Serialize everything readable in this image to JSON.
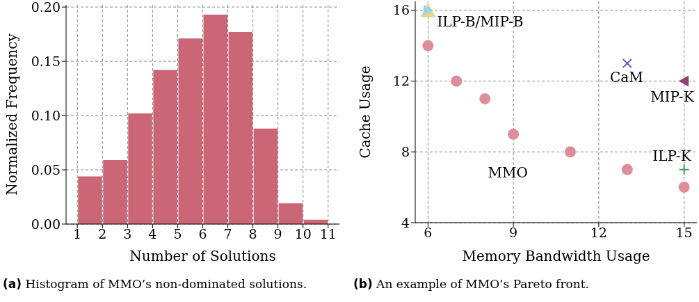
{
  "chart_data": [
    {
      "type": "histogram",
      "xlabel": "Number of Solutions",
      "ylabel": "Normalized Frequency",
      "bins": [
        1,
        2,
        3,
        4,
        5,
        6,
        7,
        8,
        9,
        10,
        11
      ],
      "values": [
        0.044,
        0.059,
        0.102,
        0.142,
        0.171,
        0.193,
        0.177,
        0.088,
        0.019,
        0.004
      ],
      "color": "#cb6677",
      "xlim": [
        0.55,
        11.45
      ],
      "ylim": [
        0,
        0.202
      ],
      "xticks": [
        1,
        2,
        3,
        4,
        5,
        6,
        7,
        8,
        9,
        10,
        11
      ],
      "yticks": [
        {
          "value": 0,
          "label": "0.00"
        },
        {
          "value": 0.05,
          "label": "0.05"
        },
        {
          "value": 0.1,
          "label": "0.10"
        },
        {
          "value": 0.15,
          "label": "0.15"
        },
        {
          "value": 0.2,
          "label": "0.20"
        }
      ],
      "grid": true,
      "annotations": [
        "(a) Histogram of MMO’s non-dominated solutions."
      ]
    },
    {
      "type": "scatter",
      "xlabel": "Memory Bandwidth Usage",
      "ylabel": "Cache Usage",
      "xlim": [
        5.55,
        15.45
      ],
      "ylim": [
        4,
        16.5
      ],
      "xticks": [
        6,
        9,
        12,
        15
      ],
      "yticks": [
        4,
        8,
        12,
        16
      ],
      "grid": true,
      "series": [
        {
          "name": "MMO",
          "color": "#dd8e9b",
          "marker": "circle",
          "x": [
            6,
            7,
            8,
            9,
            11,
            13,
            15
          ],
          "values": [
            14,
            12,
            11,
            9,
            8,
            7,
            6
          ]
        },
        {
          "color": "#e9d488",
          "marker": "triangle",
          "x": [
            6
          ],
          "values": [
            16
          ]
        },
        {
          "name": "ILP-B/MIP-B",
          "color": "#99d4e8",
          "marker": "triangle-right",
          "x": [
            6
          ],
          "values": [
            16
          ]
        },
        {
          "name": "CaM",
          "color": "#6a5fb0",
          "marker": "x",
          "x": [
            13
          ],
          "values": [
            13
          ]
        },
        {
          "name": "MIP-K",
          "color": "#94406f",
          "marker": "triangle-left",
          "x": [
            15
          ],
          "values": [
            12
          ]
        },
        {
          "name": "ILP-K",
          "color": "#3b9b5a",
          "marker": "cross",
          "x": [
            15
          ],
          "values": [
            7
          ]
        }
      ],
      "annotations": [
        "(b) An example of MMO’s Pareto front."
      ]
    }
  ]
}
